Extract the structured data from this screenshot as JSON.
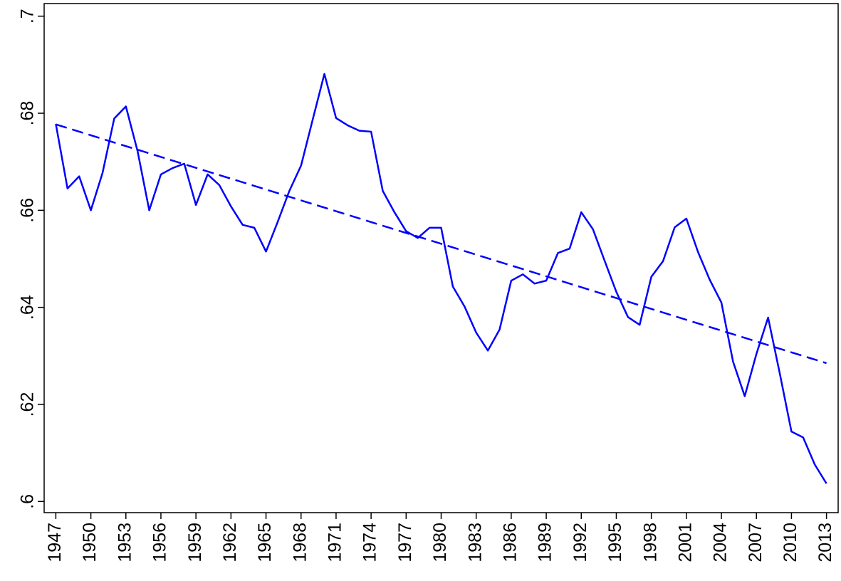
{
  "chart_data": {
    "type": "line",
    "x": [
      1947,
      1948,
      1949,
      1950,
      1951,
      1952,
      1953,
      1954,
      1955,
      1956,
      1957,
      1958,
      1959,
      1960,
      1961,
      1962,
      1963,
      1964,
      1965,
      1966,
      1967,
      1968,
      1969,
      1970,
      1971,
      1972,
      1973,
      1974,
      1975,
      1976,
      1977,
      1978,
      1979,
      1980,
      1981,
      1982,
      1983,
      1984,
      1985,
      1986,
      1987,
      1988,
      1989,
      1990,
      1991,
      1992,
      1993,
      1994,
      1995,
      1996,
      1997,
      1998,
      1999,
      2000,
      2001,
      2002,
      2003,
      2004,
      2005,
      2006,
      2007,
      2008,
      2009,
      2010,
      2011,
      2012,
      2013
    ],
    "series": [
      {
        "color": "#0000ff",
        "values": [
          0.6778,
          0.6645,
          0.667,
          0.66,
          0.6677,
          0.6789,
          0.6814,
          0.6722,
          0.66,
          0.6674,
          0.6687,
          0.6696,
          0.6611,
          0.6674,
          0.6652,
          0.6608,
          0.657,
          0.6564,
          0.6515,
          0.6576,
          0.664,
          0.6692,
          0.6787,
          0.6881,
          0.679,
          0.6775,
          0.6764,
          0.6762,
          0.664,
          0.6596,
          0.6557,
          0.6543,
          0.6564,
          0.6564,
          0.6443,
          0.6402,
          0.6348,
          0.6311,
          0.6354,
          0.6455,
          0.6468,
          0.6449,
          0.6455,
          0.6512,
          0.6521,
          0.6596,
          0.6561,
          0.6496,
          0.6432,
          0.638,
          0.6364,
          0.6463,
          0.6495,
          0.6565,
          0.6583,
          0.6514,
          0.6457,
          0.641,
          0.6288,
          0.6217,
          0.6304,
          0.6379,
          0.6264,
          0.6144,
          0.6132,
          0.6076,
          0.6037
        ]
      }
    ],
    "trend": {
      "x": [
        1947,
        2013
      ],
      "values": [
        0.6777,
        0.6285
      ],
      "color": "#0000ff",
      "dashed": true
    },
    "xlim": [
      1946,
      2014
    ],
    "ylim": [
      0.5977,
      0.7026
    ],
    "xticks": [
      1947,
      1950,
      1953,
      1956,
      1959,
      1962,
      1965,
      1968,
      1971,
      1974,
      1977,
      1980,
      1983,
      1986,
      1989,
      1992,
      1995,
      1998,
      2001,
      2004,
      2007,
      2010,
      2013
    ],
    "yticks": [
      {
        "value": 0.6,
        "label": ".6"
      },
      {
        "value": 0.62,
        "label": ".62"
      },
      {
        "value": 0.64,
        "label": ".64"
      },
      {
        "value": 0.66,
        "label": ".66"
      },
      {
        "value": 0.68,
        "label": ".68"
      },
      {
        "value": 0.7,
        "label": ".7"
      }
    ]
  }
}
